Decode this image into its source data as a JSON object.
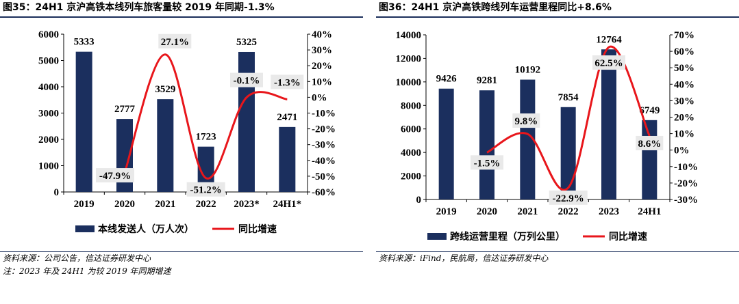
{
  "colors": {
    "bar": "#1b2f5e",
    "line": "#e8161b",
    "label_bg": "#e9e9e9",
    "rule": "#1a2d5a"
  },
  "charts": [
    {
      "title": "图35：24H1 京沪高铁本线列车旅客量较 2019 年同期-1.3%",
      "source": "资料来源：公司公告，信达证券研发中心",
      "note": "注：2023 年及 24H1 为较 2019 年同期增速",
      "chart_data": {
        "type": "bar",
        "categories": [
          "2019",
          "2020",
          "2021",
          "2022",
          "2023*",
          "24H1*"
        ],
        "series": [
          {
            "name": "本线发送人（万人次）",
            "type": "bar",
            "axis": "left",
            "values": [
              5333,
              2777,
              3529,
              1723,
              5325,
              2471
            ],
            "labels": [
              "5333",
              "2777",
              "3529",
              "1723",
              "5325",
              "2471"
            ]
          },
          {
            "name": "同比增速",
            "type": "line",
            "axis": "right",
            "values": [
              null,
              -47.9,
              27.1,
              -51.2,
              -0.1,
              -1.3
            ],
            "labels": [
              "",
              "-47.9%",
              "27.1%",
              "-51.2%",
              "-0.1%",
              "-1.3%"
            ]
          }
        ],
        "y_left": {
          "min": 0,
          "max": 6000,
          "step": 1000,
          "ticks": [
            "0",
            "1000",
            "2000",
            "3000",
            "4000",
            "5000",
            "6000"
          ]
        },
        "y_right": {
          "min": -60,
          "max": 40,
          "step": 10,
          "ticks": [
            "-60%",
            "-50%",
            "-40%",
            "-30%",
            "-20%",
            "-10%",
            "0%",
            "10%",
            "20%",
            "30%",
            "40%"
          ]
        },
        "legend_position": "bottom",
        "grid": false
      }
    },
    {
      "title": "图36：24H1 京沪高铁跨线列车运营里程同比+8.6%",
      "source": "资料来源：iFind，民航局，信达证券研发中心",
      "note": "",
      "chart_data": {
        "type": "bar",
        "categories": [
          "2019",
          "2020",
          "2021",
          "2022",
          "2023",
          "24H1"
        ],
        "series": [
          {
            "name": "跨线运营里程（万列公里）",
            "type": "bar",
            "axis": "left",
            "values": [
              9426,
              9281,
              10192,
              7854,
              12764,
              6749
            ],
            "labels": [
              "9426",
              "9281",
              "10192",
              "7854",
              "12764",
              "6749"
            ]
          },
          {
            "name": "同比增速",
            "type": "line",
            "axis": "right",
            "values": [
              null,
              -1.5,
              9.8,
              -22.9,
              62.5,
              8.6
            ],
            "labels": [
              "",
              "-1.5%",
              "9.8%",
              "-22.9%",
              "62.5%",
              "8.6%"
            ]
          }
        ],
        "y_left": {
          "min": 0,
          "max": 14000,
          "step": 2000,
          "ticks": [
            "0",
            "2000",
            "4000",
            "6000",
            "8000",
            "10000",
            "12000",
            "14000"
          ]
        },
        "y_right": {
          "min": -30,
          "max": 70,
          "step": 10,
          "ticks": [
            "-30%",
            "-20%",
            "-10%",
            "0%",
            "10%",
            "20%",
            "30%",
            "40%",
            "50%",
            "60%",
            "70%"
          ]
        },
        "legend_position": "bottom",
        "grid": false
      }
    }
  ]
}
